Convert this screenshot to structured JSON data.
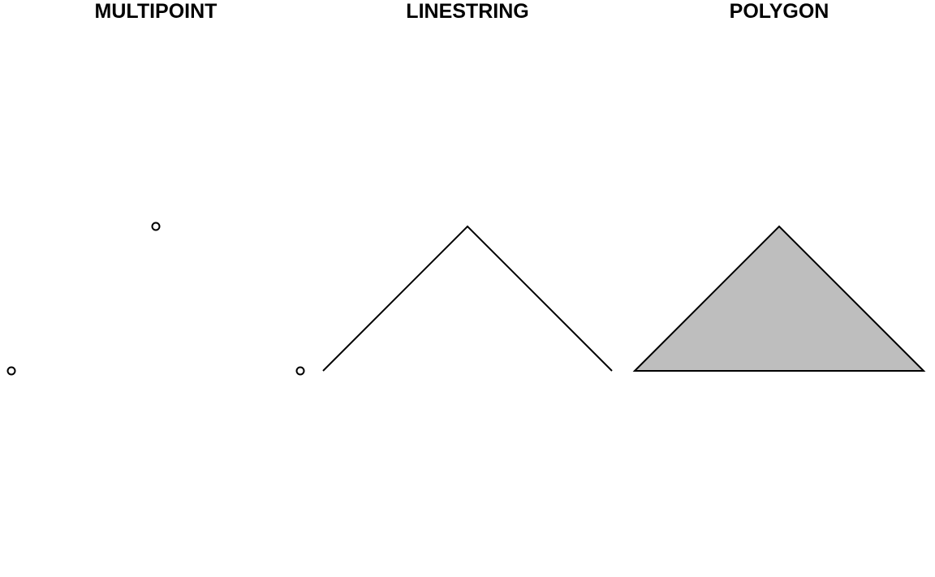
{
  "chart_data": [
    {
      "type": "scatter",
      "title": "MULTIPOINT",
      "geometry": "MULTIPOINT",
      "points": [
        [
          0,
          0
        ],
        [
          1,
          1
        ]
      ],
      "xlim": [
        0,
        2
      ],
      "ylim": [
        -1,
        2
      ]
    },
    {
      "type": "line",
      "title": "LINESTRING",
      "geometry": "LINESTRING",
      "points": [
        [
          0,
          0
        ],
        [
          1,
          1
        ],
        [
          2,
          0
        ]
      ],
      "xlim": [
        0,
        2
      ],
      "ylim": [
        -1,
        2
      ]
    },
    {
      "type": "area",
      "title": "POLYGON",
      "geometry": "POLYGON",
      "points": [
        [
          0,
          0
        ],
        [
          1,
          1
        ],
        [
          2,
          0
        ],
        [
          0,
          0
        ]
      ],
      "xlim": [
        0,
        2
      ],
      "ylim": [
        -1,
        2
      ],
      "fill_color": "#bebebe"
    }
  ],
  "colors": {
    "stroke": "#000000",
    "polygon_fill": "#bebebe",
    "background": "#ffffff"
  }
}
